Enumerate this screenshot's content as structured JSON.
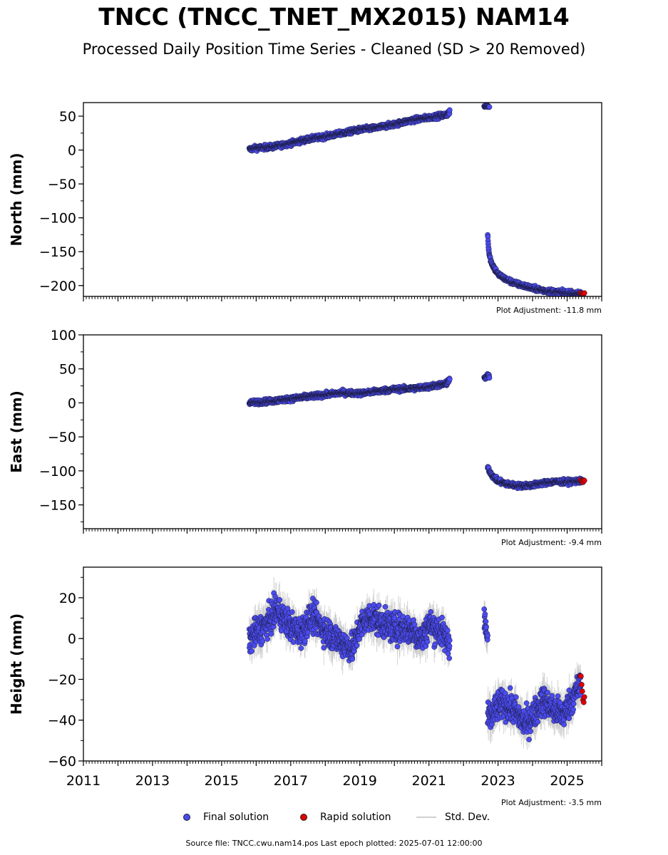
{
  "title": "TNCC (TNCC_TNET_MX2015) NAM14",
  "subtitle": "Processed Daily Position Time Series - Cleaned (SD > 20 Removed)",
  "source_text": "Source file: TNCC.cwu.nam14.pos  Last epoch plotted: 2025-07-01 12:00:00",
  "legend": {
    "final_label": "Final solution",
    "rapid_label": "Rapid solution",
    "std_label": "Std. Dev."
  },
  "colors": {
    "final": "#4b4bf0",
    "rapid": "#e00000",
    "std": "#c8c8c8",
    "edge": "#1a1a3a"
  },
  "chart_data": [
    {
      "type": "scatter",
      "component": "north",
      "ylabel": "North (mm)",
      "adjustment": "Plot Adjustment: -11.8 mm",
      "xlim": [
        2011.0,
        2026.0
      ],
      "ylim": [
        -216,
        70
      ],
      "yticks": [
        50,
        0,
        -50,
        -100,
        -150,
        -200
      ],
      "ytick_labels": [
        "50",
        "0",
        "−50",
        "−100",
        "−150",
        "−200"
      ],
      "segments": [
        {
          "name": "Final solution",
          "x": [
            2015.8,
            2016.0,
            2016.5,
            2017.0,
            2017.5,
            2018.0,
            2018.5,
            2019.0,
            2019.5,
            2020.0,
            2020.5,
            2021.0,
            2021.5,
            2021.6
          ],
          "y": [
            1,
            3,
            5,
            10,
            16,
            20,
            25,
            30,
            33,
            38,
            44,
            48,
            52,
            56
          ],
          "noise": 2.5
        },
        {
          "name": "Final solution",
          "x": [
            2022.6,
            2022.7,
            2022.75
          ],
          "y": [
            64,
            65,
            64
          ],
          "noise": 1
        },
        {
          "name": "Final solution",
          "x": [
            2022.7,
            2022.72,
            2022.75,
            2022.8,
            2022.9,
            2023.0,
            2023.2,
            2023.5,
            2023.8,
            2024.0,
            2024.3,
            2024.6,
            2025.0,
            2025.3,
            2025.45
          ],
          "y": [
            -125,
            -140,
            -155,
            -165,
            -175,
            -183,
            -190,
            -197,
            -201,
            -204,
            -207,
            -209,
            -211,
            -212,
            -212
          ],
          "noise": 2.5
        },
        {
          "name": "Rapid solution",
          "x": [
            2025.38,
            2025.45,
            2025.5
          ],
          "y": [
            -211,
            -212,
            -211
          ],
          "noise": 1
        }
      ]
    },
    {
      "type": "scatter",
      "component": "east",
      "ylabel": "East (mm)",
      "adjustment": "Plot Adjustment: -9.4 mm",
      "xlim": [
        2011.0,
        2026.0
      ],
      "ylim": [
        -185,
        100
      ],
      "yticks": [
        100,
        50,
        0,
        -50,
        -100,
        -150
      ],
      "ytick_labels": [
        "100",
        "50",
        "0",
        "−50",
        "−100",
        "−150"
      ],
      "segments": [
        {
          "name": "Final solution",
          "x": [
            2015.8,
            2016.0,
            2016.5,
            2017.0,
            2017.5,
            2018.0,
            2018.5,
            2019.0,
            2019.5,
            2020.0,
            2020.5,
            2021.0,
            2021.5,
            2021.6
          ],
          "y": [
            0,
            1,
            3,
            6,
            9,
            12,
            15,
            14,
            17,
            20,
            21,
            24,
            28,
            35
          ],
          "noise": 2.5
        },
        {
          "name": "Final solution",
          "x": [
            2022.6,
            2022.7,
            2022.75
          ],
          "y": [
            35,
            40,
            39
          ],
          "noise": 2
        },
        {
          "name": "Final solution",
          "x": [
            2022.7,
            2022.75,
            2022.85,
            2023.0,
            2023.3,
            2023.6,
            2024.0,
            2024.3,
            2024.6,
            2025.0,
            2025.3,
            2025.45
          ],
          "y": [
            -93,
            -100,
            -108,
            -115,
            -120,
            -122,
            -121,
            -118,
            -116,
            -116,
            -115,
            -115
          ],
          "noise": 2.5
        },
        {
          "name": "Rapid solution",
          "x": [
            2025.38,
            2025.45,
            2025.5
          ],
          "y": [
            -114,
            -116,
            -115
          ],
          "noise": 1
        }
      ]
    },
    {
      "type": "scatter",
      "component": "height",
      "ylabel": "Height (mm)",
      "adjustment": "Plot Adjustment: -3.5 mm",
      "xlim": [
        2011.0,
        2026.0
      ],
      "ylim": [
        -60,
        35
      ],
      "yticks": [
        20,
        0,
        -20,
        -40,
        -60
      ],
      "ytick_labels": [
        "20",
        "0",
        "−20",
        "−40",
        "−60"
      ],
      "xticks": [
        2011,
        2013,
        2015,
        2017,
        2019,
        2021,
        2023,
        2025
      ],
      "xtick_labels": [
        "2011",
        "2013",
        "2015",
        "2017",
        "2019",
        "2021",
        "2023",
        "2025"
      ],
      "segments": [
        {
          "name": "Final solution",
          "x": [
            2015.8,
            2016.0,
            2016.3,
            2016.6,
            2017.0,
            2017.3,
            2017.6,
            2018.0,
            2018.4,
            2018.8,
            2019.0,
            2019.3,
            2019.6,
            2020.0,
            2020.4,
            2020.8,
            2021.0,
            2021.3,
            2021.6
          ],
          "y": [
            0,
            3,
            7,
            14,
            6,
            3,
            11,
            4,
            -1,
            -5,
            6,
            11,
            8,
            5,
            5,
            0,
            7,
            4,
            -2
          ],
          "noise": 5
        },
        {
          "name": "Final solution",
          "x": [
            2022.6,
            2022.65,
            2022.7
          ],
          "y": [
            10,
            5,
            0
          ],
          "noise": 4
        },
        {
          "name": "Final solution",
          "x": [
            2022.7,
            2022.8,
            2023.0,
            2023.2,
            2023.5,
            2023.8,
            2024.0,
            2024.3,
            2024.6,
            2024.9,
            2025.2,
            2025.4
          ],
          "y": [
            -40,
            -38,
            -33,
            -32,
            -36,
            -42,
            -38,
            -30,
            -35,
            -37,
            -28,
            -22
          ],
          "noise": 5
        },
        {
          "name": "Rapid solution",
          "x": [
            2025.38,
            2025.42,
            2025.46,
            2025.5
          ],
          "y": [
            -18,
            -24,
            -30,
            -27
          ],
          "noise": 3
        }
      ]
    }
  ]
}
